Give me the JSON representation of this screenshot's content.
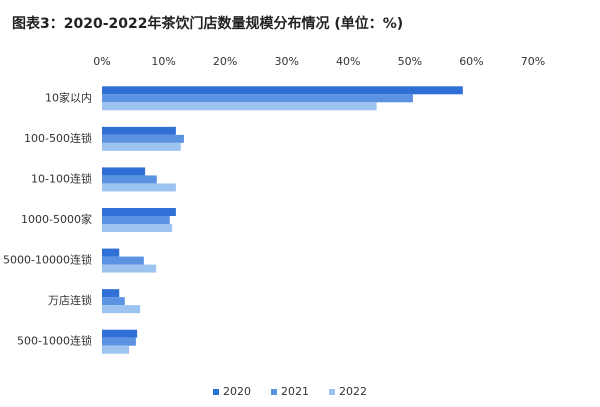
{
  "chart_data": {
    "type": "hbar",
    "title": "图表3：2020-2022年茶饮门店数量规模分布情况 (单位：%)",
    "categories": [
      "10家以内",
      "100-500连锁",
      "10-100连锁",
      "1000-5000家",
      "5000-10000连锁",
      "万店连锁",
      "500-1000连锁"
    ],
    "series": [
      {
        "name": "2020",
        "color": "#2f6fd6",
        "values": [
          58.6,
          12.0,
          7.0,
          12.0,
          2.8,
          2.8,
          5.7
        ]
      },
      {
        "name": "2021",
        "color": "#5b93e2",
        "values": [
          50.5,
          13.3,
          8.9,
          11.0,
          6.8,
          3.7,
          5.5
        ]
      },
      {
        "name": "2022",
        "color": "#9dc3f1",
        "values": [
          44.6,
          12.8,
          12.0,
          11.4,
          8.8,
          6.2,
          4.4
        ]
      }
    ],
    "xlim": [
      0,
      70
    ],
    "xticks": [
      {
        "value": 0,
        "label": "0%"
      },
      {
        "value": 10,
        "label": "10%"
      },
      {
        "value": 20,
        "label": "20%"
      },
      {
        "value": 30,
        "label": "30%"
      },
      {
        "value": 40,
        "label": "40%"
      },
      {
        "value": 50,
        "label": "50%"
      },
      {
        "value": 60,
        "label": "60%"
      },
      {
        "value": 70,
        "label": "70%"
      }
    ],
    "grid": false,
    "legend": "bottom"
  }
}
